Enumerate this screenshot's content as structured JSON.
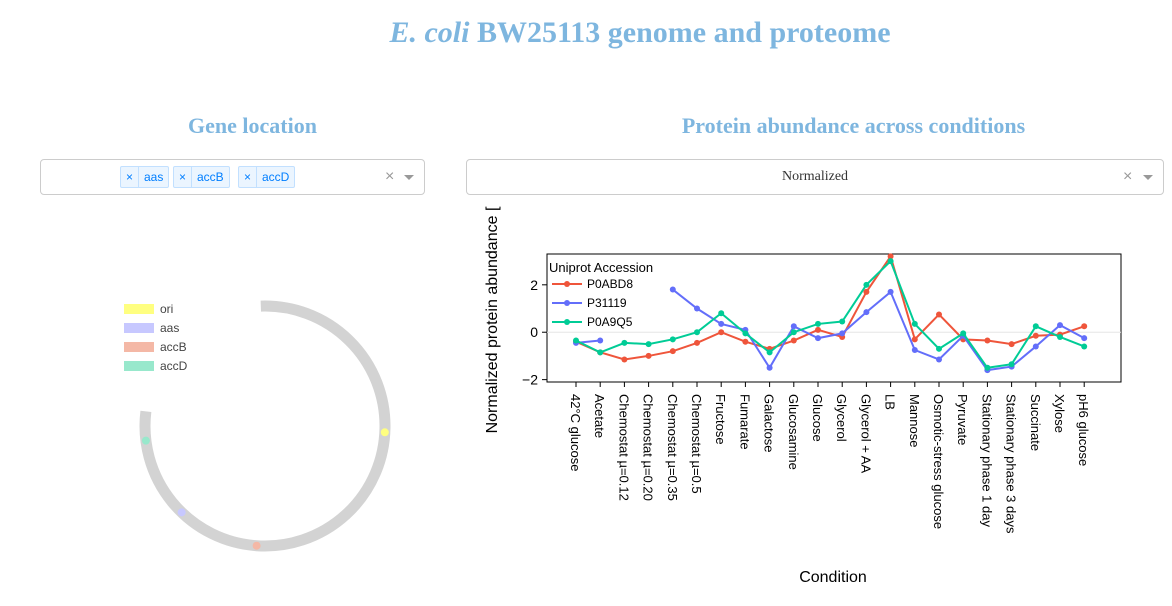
{
  "title": {
    "italic": "E. coli",
    "rest": " BW25113 genome and proteome"
  },
  "gene_panel": {
    "title": "Gene location",
    "selected": [
      "aas",
      "accB",
      "accD"
    ],
    "legend": [
      {
        "label": "ori",
        "color": "#ffff80"
      },
      {
        "label": "aas",
        "color": "#c7c8ff"
      },
      {
        "label": "accB",
        "color": "#f4b8a6"
      },
      {
        "label": "accD",
        "color": "#98e8cc"
      }
    ],
    "genome_markers": [
      {
        "label": "ori",
        "angle_deg": 3,
        "color": "#ffff80"
      },
      {
        "label": "aas",
        "angle_deg": 134,
        "color": "#c7c8ff"
      },
      {
        "label": "accB",
        "angle_deg": 94,
        "color": "#f4b8a6"
      },
      {
        "label": "accD",
        "angle_deg": 173,
        "color": "#98e8cc"
      }
    ],
    "ring_color": "#d3d3d3"
  },
  "abundance_panel": {
    "title": "Protein abundance across conditions",
    "mode": "Normalized"
  },
  "chart_data": {
    "type": "line",
    "categories": [
      "42°C glucose",
      "Acetate",
      "Chemostat µ=0.12",
      "Chemostat µ=0.20",
      "Chemostat µ=0.35",
      "Chemostat µ=0.5",
      "Fructose",
      "Fumarate",
      "Galactose",
      "Glucosamine",
      "Glucose",
      "Glycerol",
      "Glycerol + AA",
      "LB",
      "Mannose",
      "Osmotic-stress glucose",
      "Pyruvate",
      "Stationary phase 1 day",
      "Stationary phase 3 days",
      "Succinate",
      "Xylose",
      "pH6 glucose"
    ],
    "xlabel": "Condition",
    "ylabel": "Normalized protein abundance [",
    "ylim": [
      -2.1,
      3.3
    ],
    "yticks": [
      -2,
      0,
      2
    ],
    "legend_title": "Uniprot Accession",
    "legend_position": "top-left",
    "series": [
      {
        "name": "P0ABD8",
        "color": "#ef553b",
        "values": [
          -0.4,
          -0.85,
          -1.15,
          -1.0,
          -0.8,
          -0.45,
          0.0,
          -0.4,
          -0.7,
          -0.35,
          0.1,
          -0.2,
          1.7,
          3.2,
          -0.3,
          0.75,
          -0.3,
          -0.35,
          -0.5,
          -0.15,
          -0.1,
          0.25
        ]
      },
      {
        "name": "P31119",
        "color": "#636efa",
        "values": [
          -0.45,
          -0.35,
          null,
          null,
          1.8,
          1.0,
          0.35,
          0.1,
          -1.5,
          0.25,
          -0.25,
          -0.05,
          0.85,
          1.7,
          -0.75,
          -1.15,
          -0.15,
          -1.6,
          -1.45,
          -0.6,
          0.3,
          -0.25
        ]
      },
      {
        "name": "P0A9Q5",
        "color": "#00cc96",
        "values": [
          -0.35,
          -0.85,
          -0.45,
          -0.5,
          -0.3,
          0.0,
          0.8,
          -0.05,
          -0.85,
          0.0,
          0.35,
          0.45,
          2.0,
          3.0,
          0.35,
          -0.7,
          -0.05,
          -1.5,
          -1.35,
          0.25,
          -0.2,
          -0.6
        ]
      }
    ]
  }
}
